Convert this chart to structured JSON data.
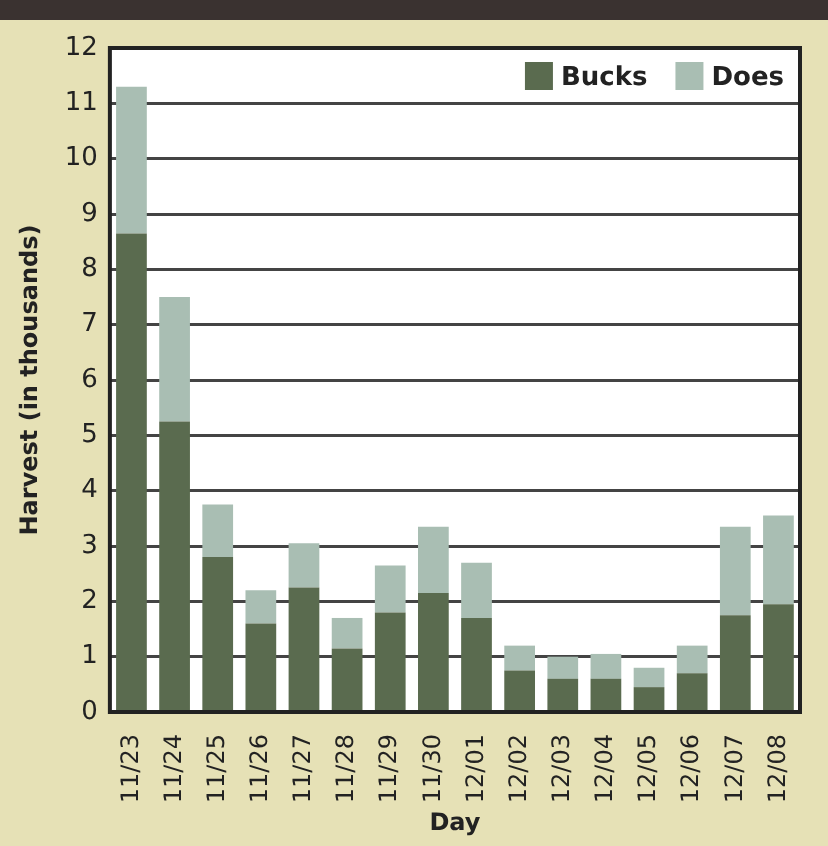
{
  "chart_data": {
    "type": "bar",
    "stacked": true,
    "xlabel": "Day",
    "ylabel": "Harvest (in thousands)",
    "categories": [
      "11/23",
      "11/24",
      "11/25",
      "11/26",
      "11/27",
      "11/28",
      "11/29",
      "11/30",
      "12/01",
      "12/02",
      "12/03",
      "12/04",
      "12/05",
      "12/06",
      "12/07",
      "12/08"
    ],
    "series": [
      {
        "name": "Bucks",
        "color": "#5a6b4f",
        "values": [
          8.65,
          5.25,
          2.8,
          1.6,
          2.25,
          1.15,
          1.8,
          2.15,
          1.7,
          0.75,
          0.6,
          0.6,
          0.45,
          0.7,
          1.75,
          1.95
        ]
      },
      {
        "name": "Does",
        "color": "#a9beb3",
        "values": [
          2.65,
          2.25,
          0.95,
          0.6,
          0.8,
          0.55,
          0.85,
          1.2,
          1.0,
          0.45,
          0.4,
          0.45,
          0.35,
          0.5,
          1.6,
          1.6
        ]
      }
    ],
    "ylim": [
      0,
      12
    ],
    "yticks": [
      0,
      1,
      2,
      3,
      4,
      5,
      6,
      7,
      8,
      9,
      10,
      11,
      12
    ],
    "grid": "y",
    "legend": "top right"
  }
}
